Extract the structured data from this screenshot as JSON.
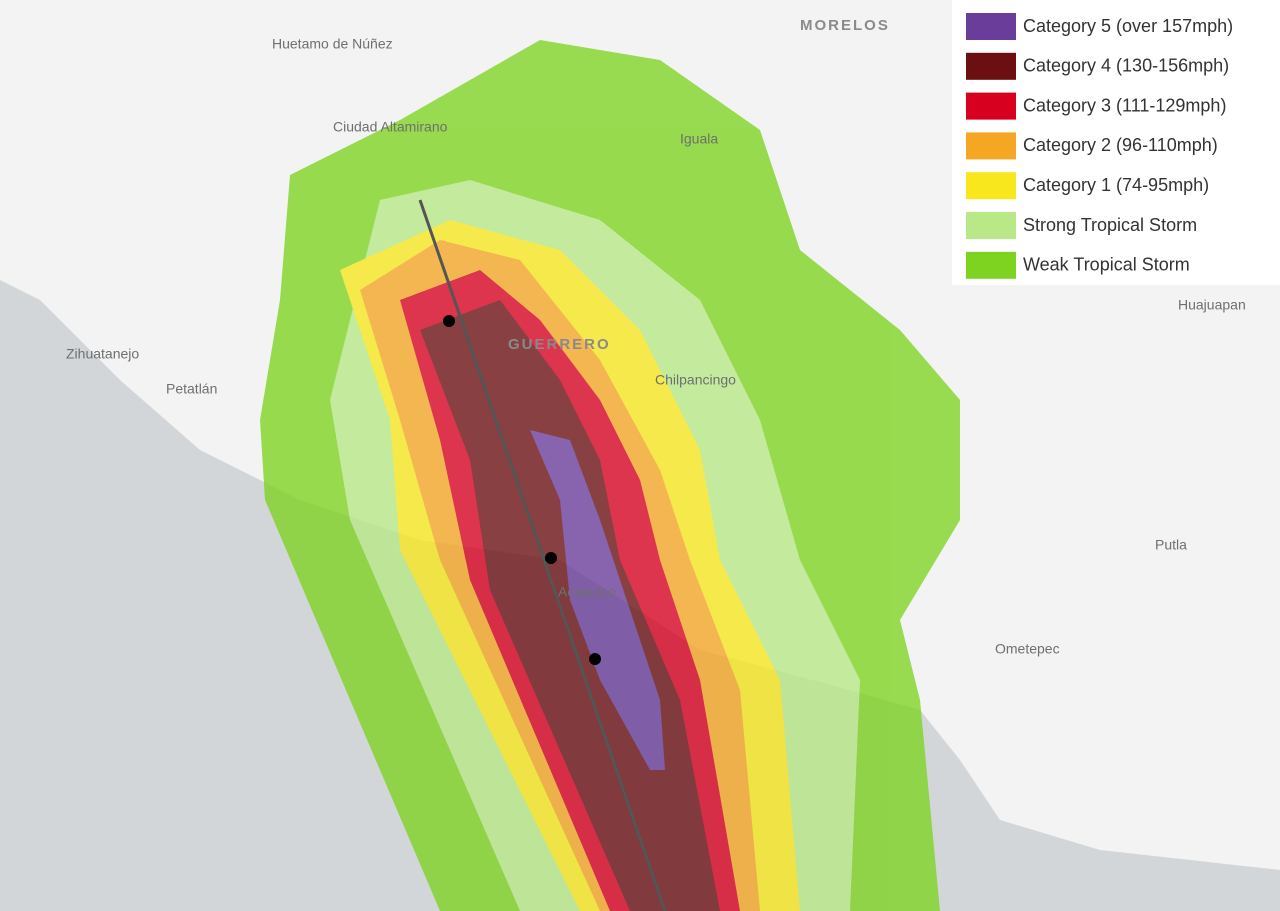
{
  "map": {
    "places": [
      "MORELOS",
      "Huetamo de Núñez",
      "Ciudad Altamirano",
      "Iguala",
      "Zihuatanejo",
      "Petatlán",
      "GUERRERO",
      "Chilpancingo",
      "Acapulco",
      "Huajuapan",
      "Putla",
      "Ometepec"
    ],
    "legend": [
      {
        "label": "Category 5 (over 157mph)",
        "color": "#6a3d9a"
      },
      {
        "label": "Category 4 (130-156mph)",
        "color": "#6b0f12"
      },
      {
        "label": "Category 3 (111-129mph)",
        "color": "#d7001f"
      },
      {
        "label": "Category 2 (96-110mph)",
        "color": "#f5a623"
      },
      {
        "label": "Category 1 (74-95mph)",
        "color": "#f8e71c"
      },
      {
        "label": "Strong Tropical Storm",
        "color": "#b8e986"
      },
      {
        "label": "Weak Tropical Storm",
        "color": "#7ed321"
      }
    ]
  }
}
